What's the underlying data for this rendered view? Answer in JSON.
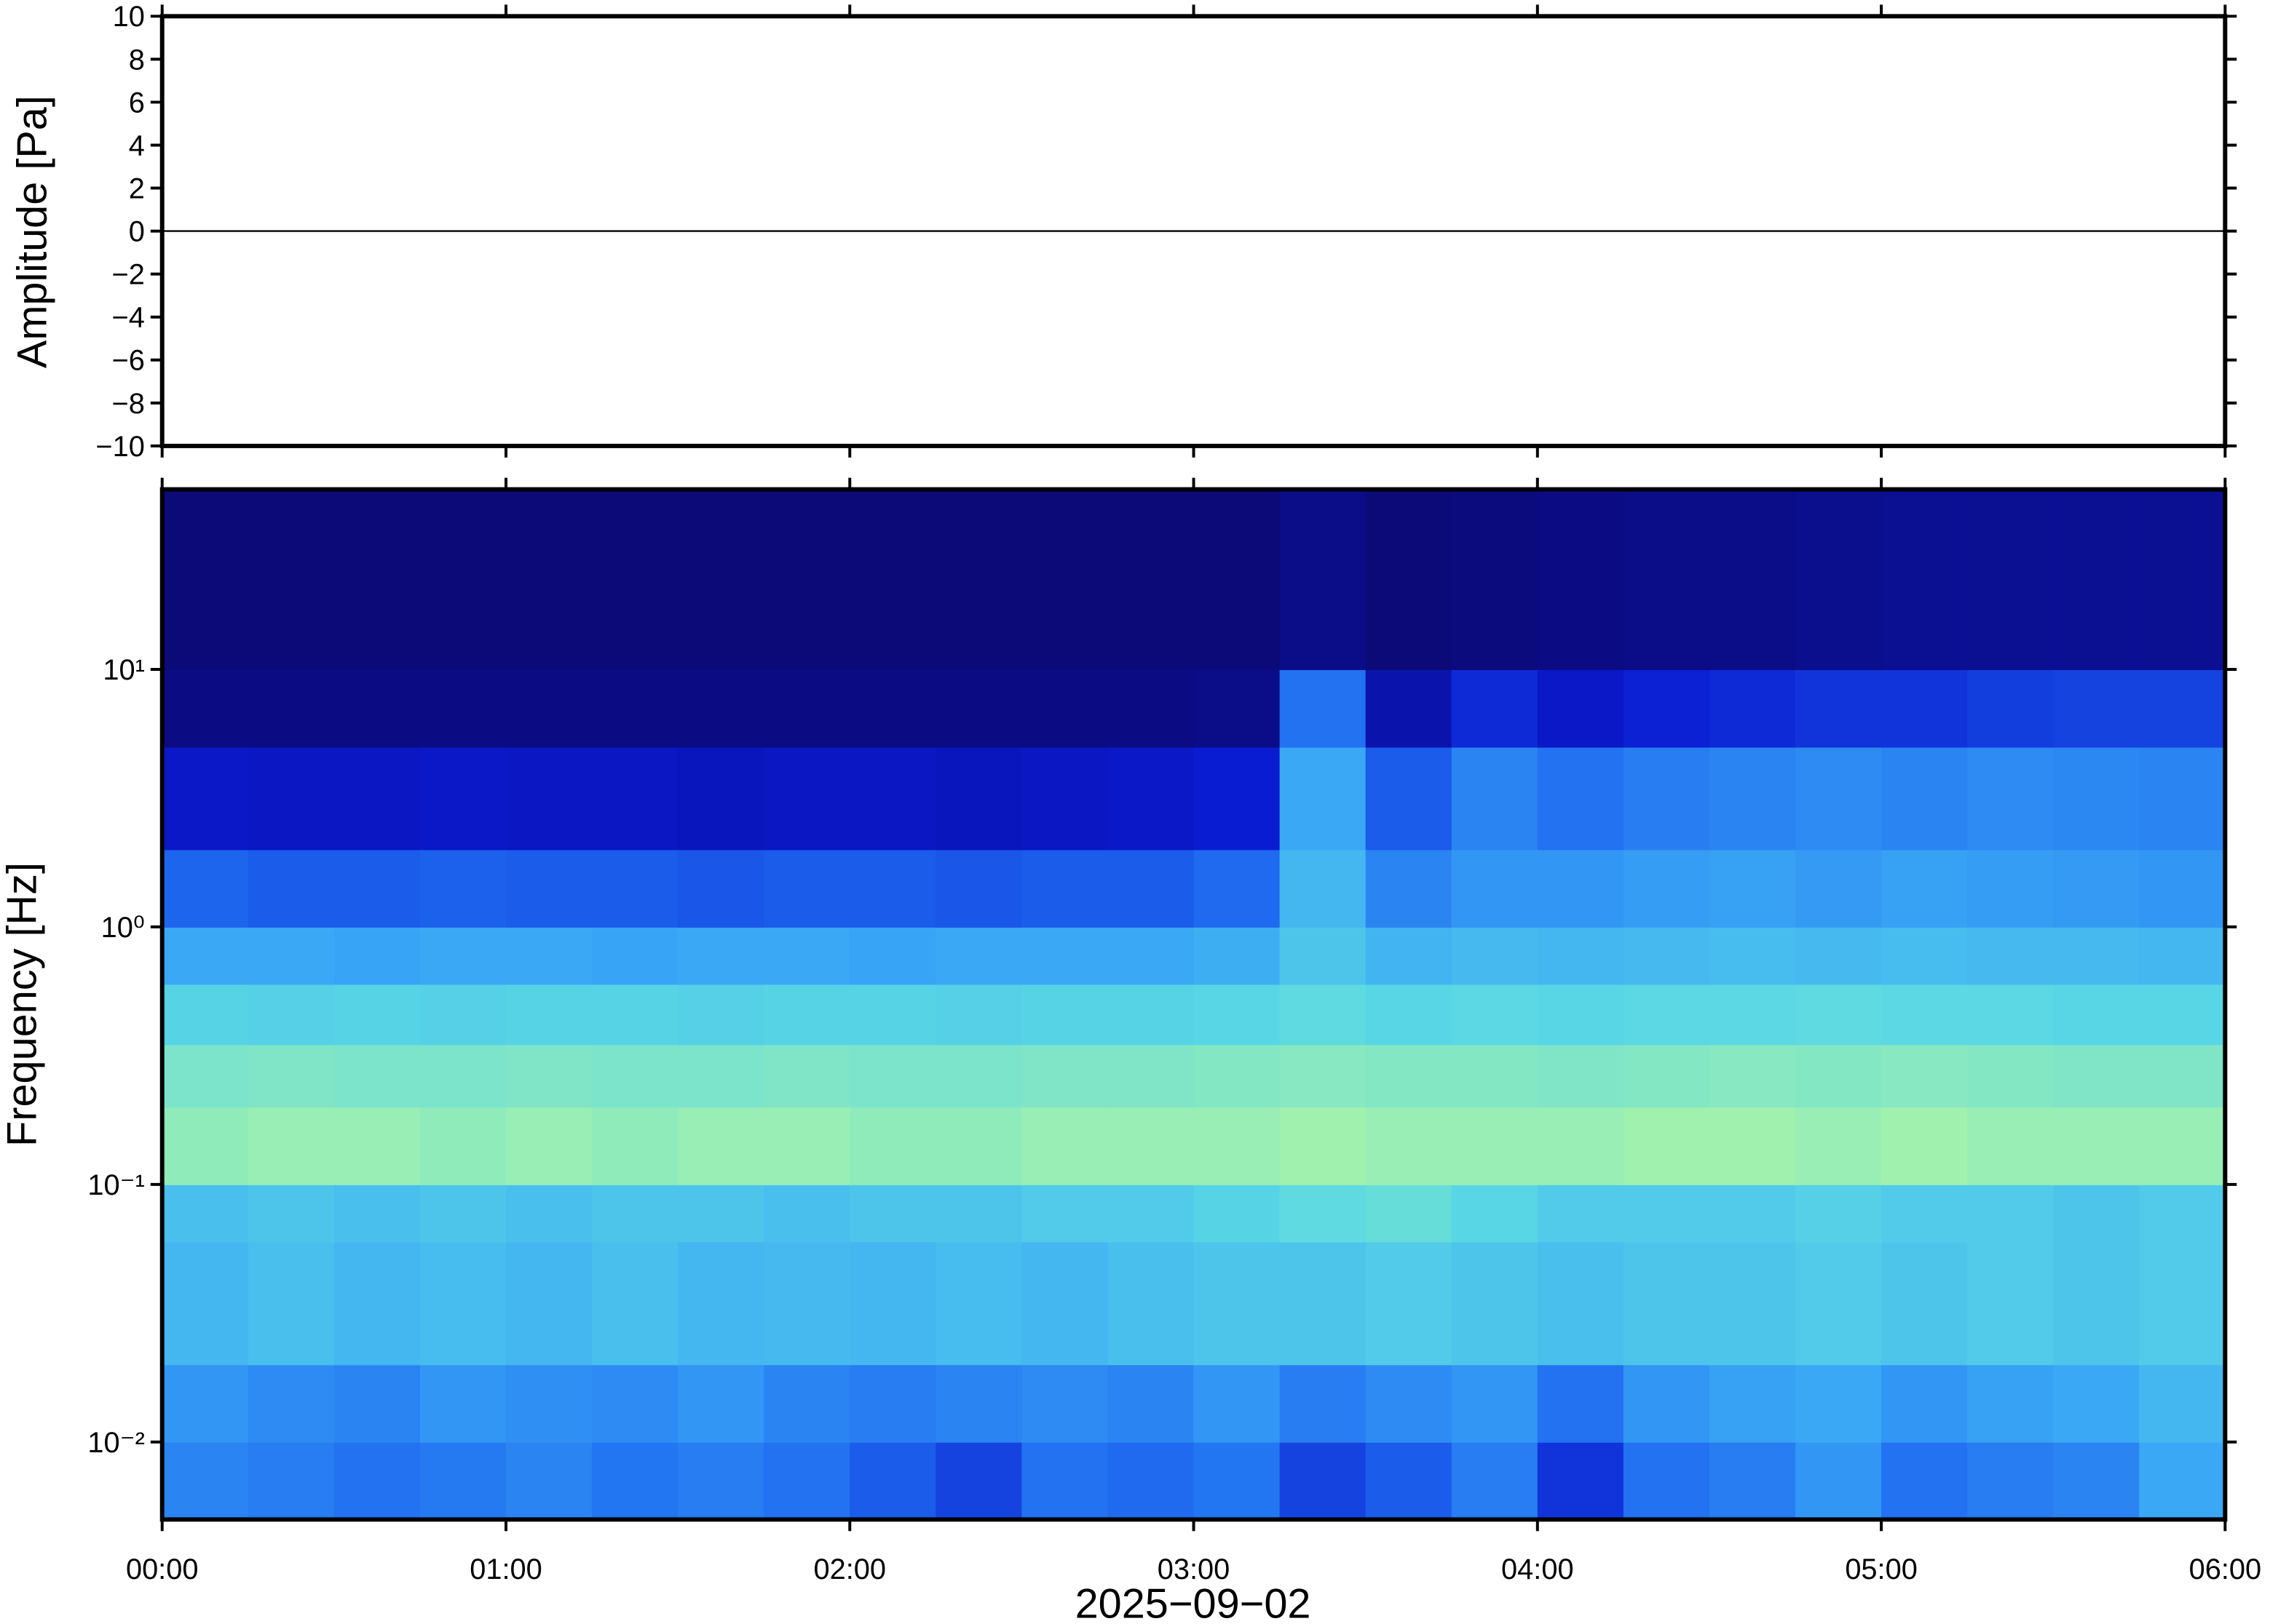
{
  "chart_data": [
    {
      "type": "line",
      "ylabel": "Amplitude [Pa]",
      "xlim": [
        0,
        6
      ],
      "x": [
        0,
        6
      ],
      "values": [
        0,
        0
      ],
      "color": "#000000",
      "ylim": [
        -10,
        10
      ],
      "yticks": [
        {
          "value": -10,
          "label": "−10"
        },
        {
          "value": -8,
          "label": "−8"
        },
        {
          "value": -6,
          "label": "−6"
        },
        {
          "value": -4,
          "label": "−4"
        },
        {
          "value": -2,
          "label": "−2"
        },
        0,
        2,
        4,
        6,
        8,
        10
      ]
    },
    {
      "type": "heatmap",
      "xlabel": "2025−09−02",
      "ylabel": "Frequency [Hz]",
      "log_y": true,
      "xlim": [
        0,
        6
      ],
      "xticks": [
        {
          "value": 0,
          "label": "00:00"
        },
        {
          "value": 1,
          "label": "01:00"
        },
        {
          "value": 2,
          "label": "02:00"
        },
        {
          "value": 3,
          "label": "03:00"
        },
        {
          "value": 4,
          "label": "04:00"
        },
        {
          "value": 5,
          "label": "05:00"
        },
        {
          "value": 6,
          "label": "06:00"
        }
      ],
      "ylim": [
        0.005,
        50
      ],
      "yticks": [
        {
          "value": 0.01,
          "label": "10⁻²"
        },
        {
          "value": 0.1,
          "label": "10⁻¹"
        },
        {
          "value": 1,
          "label": "10⁰"
        },
        {
          "value": 10,
          "label": "10¹"
        }
      ],
      "colormap": [
        "#0b0a78",
        "#0a1ad0",
        "#1f6cf0",
        "#3aa8f5",
        "#5ad8e4",
        "#9df0b0",
        "#e6f586"
      ],
      "x_bins": [
        0,
        0.25,
        0.5,
        0.75,
        1,
        1.25,
        1.5,
        1.75,
        2,
        2.25,
        2.5,
        2.75,
        3,
        3.25,
        3.5,
        3.75,
        4,
        4.25,
        4.5,
        4.75,
        5,
        5.25,
        5.5,
        5.75,
        6
      ],
      "y_bins": [
        0.005,
        0.01,
        0.02,
        0.06,
        0.1,
        0.2,
        0.35,
        0.6,
        1,
        2,
        5,
        10,
        50
      ],
      "values": [
        [
          0.4,
          0.38,
          0.35,
          0.37,
          0.4,
          0.36,
          0.38,
          0.35,
          0.3,
          0.25,
          0.35,
          0.33,
          0.36,
          0.25,
          0.3,
          0.38,
          0.22,
          0.35,
          0.38,
          0.45,
          0.35,
          0.38,
          0.4,
          0.5
        ],
        [
          0.45,
          0.42,
          0.4,
          0.45,
          0.43,
          0.42,
          0.45,
          0.4,
          0.38,
          0.4,
          0.42,
          0.4,
          0.45,
          0.38,
          0.42,
          0.45,
          0.35,
          0.45,
          0.48,
          0.5,
          0.45,
          0.48,
          0.5,
          0.55
        ],
        [
          0.55,
          0.58,
          0.55,
          0.57,
          0.55,
          0.58,
          0.55,
          0.56,
          0.55,
          0.57,
          0.55,
          0.58,
          0.6,
          0.6,
          0.62,
          0.6,
          0.58,
          0.6,
          0.6,
          0.62,
          0.6,
          0.62,
          0.6,
          0.62
        ],
        [
          0.58,
          0.6,
          0.58,
          0.6,
          0.58,
          0.6,
          0.6,
          0.58,
          0.6,
          0.6,
          0.62,
          0.62,
          0.65,
          0.68,
          0.7,
          0.66,
          0.62,
          0.62,
          0.62,
          0.64,
          0.62,
          0.62,
          0.6,
          0.62
        ],
        [
          0.8,
          0.82,
          0.82,
          0.8,
          0.82,
          0.8,
          0.82,
          0.82,
          0.8,
          0.8,
          0.82,
          0.82,
          0.82,
          0.84,
          0.82,
          0.82,
          0.82,
          0.84,
          0.84,
          0.82,
          0.84,
          0.82,
          0.82,
          0.82
        ],
        [
          0.75,
          0.76,
          0.75,
          0.75,
          0.76,
          0.75,
          0.75,
          0.76,
          0.75,
          0.75,
          0.76,
          0.76,
          0.77,
          0.78,
          0.77,
          0.77,
          0.76,
          0.77,
          0.78,
          0.77,
          0.78,
          0.77,
          0.76,
          0.76
        ],
        [
          0.65,
          0.64,
          0.65,
          0.64,
          0.65,
          0.65,
          0.64,
          0.65,
          0.65,
          0.64,
          0.65,
          0.65,
          0.66,
          0.68,
          0.66,
          0.67,
          0.66,
          0.67,
          0.67,
          0.68,
          0.67,
          0.67,
          0.66,
          0.66
        ],
        [
          0.5,
          0.5,
          0.49,
          0.5,
          0.5,
          0.49,
          0.5,
          0.5,
          0.49,
          0.5,
          0.5,
          0.5,
          0.52,
          0.6,
          0.54,
          0.56,
          0.55,
          0.56,
          0.57,
          0.56,
          0.57,
          0.56,
          0.56,
          0.55
        ],
        [
          0.32,
          0.3,
          0.3,
          0.31,
          0.3,
          0.3,
          0.29,
          0.3,
          0.3,
          0.29,
          0.3,
          0.3,
          0.33,
          0.55,
          0.4,
          0.45,
          0.45,
          0.47,
          0.48,
          0.46,
          0.48,
          0.47,
          0.46,
          0.45
        ],
        [
          0.15,
          0.14,
          0.14,
          0.15,
          0.14,
          0.14,
          0.13,
          0.14,
          0.14,
          0.13,
          0.14,
          0.15,
          0.17,
          0.5,
          0.3,
          0.4,
          0.35,
          0.38,
          0.4,
          0.42,
          0.4,
          0.42,
          0.41,
          0.4
        ],
        [
          0.02,
          0.02,
          0.02,
          0.02,
          0.02,
          0.02,
          0.02,
          0.02,
          0.02,
          0.02,
          0.02,
          0.02,
          0.03,
          0.35,
          0.1,
          0.2,
          0.15,
          0.18,
          0.2,
          0.22,
          0.22,
          0.24,
          0.25,
          0.25
        ],
        [
          0,
          0,
          0,
          0,
          0,
          0,
          0,
          0,
          0,
          0,
          0,
          0,
          0,
          0.03,
          0,
          0.01,
          0.02,
          0.03,
          0.03,
          0.04,
          0.05,
          0.05,
          0.05,
          0.05
        ]
      ]
    }
  ]
}
